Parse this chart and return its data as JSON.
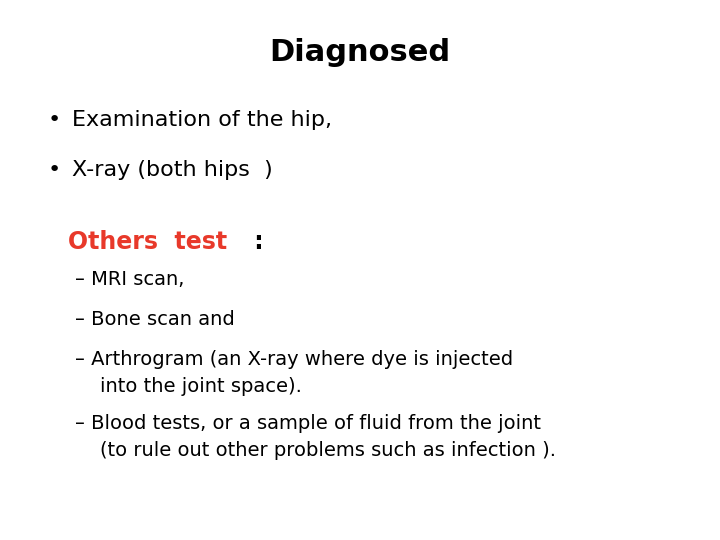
{
  "title": "Diagnosed",
  "title_fontsize": 22,
  "title_fontweight": "bold",
  "title_color": "#000000",
  "background_color": "#ffffff",
  "bullet_points": [
    "Examination of the hip,",
    "X-ray (both hips  )"
  ],
  "bullet_color": "#000000",
  "bullet_fontsize": 16,
  "others_label": "Others  test",
  "others_colon": " :",
  "others_label_color": "#e8392a",
  "others_colon_color": "#000000",
  "others_fontsize": 17,
  "dash_items": [
    "– MRI scan,",
    "– Bone scan and",
    "– Arthrogram (an X-ray where dye is injected\n    into the joint space).",
    "– Blood tests, or a sample of fluid from the joint\n    (to rule out other problems such as infection )."
  ],
  "dash_color": "#000000",
  "dash_fontsize": 14,
  "fig_width": 7.2,
  "fig_height": 5.4,
  "dpi": 100
}
